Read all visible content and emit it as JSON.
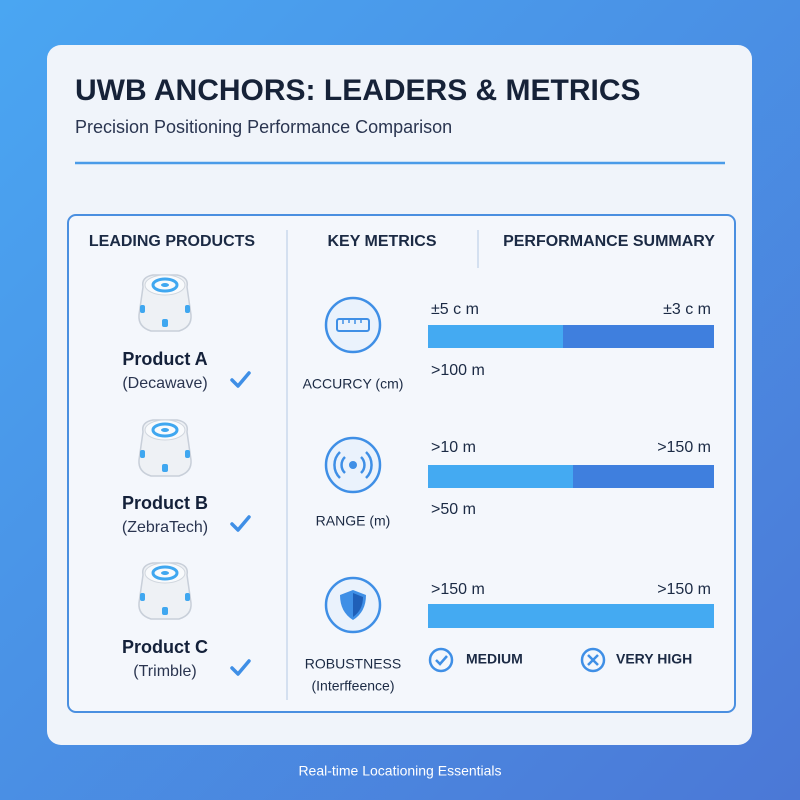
{
  "header": {
    "title": "UWB ANCHORS: LEADERS & METRICS",
    "subtitle": "Precision Positioning Performance Comparison"
  },
  "columns": [
    "LEADING PRODUCTS",
    "KEY METRICS",
    "PERFORMANCE SUMMARY"
  ],
  "products": [
    {
      "name": "Product A",
      "vendor": "(Decawave)"
    },
    {
      "name": "Product B",
      "vendor": "(ZebraTech)"
    },
    {
      "name": "Product C",
      "vendor": "(Trimble)"
    }
  ],
  "metrics": [
    {
      "label": "ACCURCY (cm)"
    },
    {
      "label": "RANGE (m)"
    },
    {
      "label": "ROBUSTNESS",
      "sublabel": "(Interffeence)"
    }
  ],
  "summary": [
    {
      "left": "±5 c m",
      "right": "±3 c m",
      "below": ">100 m"
    },
    {
      "left": ">10 m",
      "right": ">150 m",
      "below": ">50 m"
    },
    {
      "left": ">150 m",
      "right": ">150 m",
      "legend": [
        "MEDIUM",
        "VERY HIGH"
      ]
    }
  ],
  "footer": "Real-time Locationing Essentials"
}
